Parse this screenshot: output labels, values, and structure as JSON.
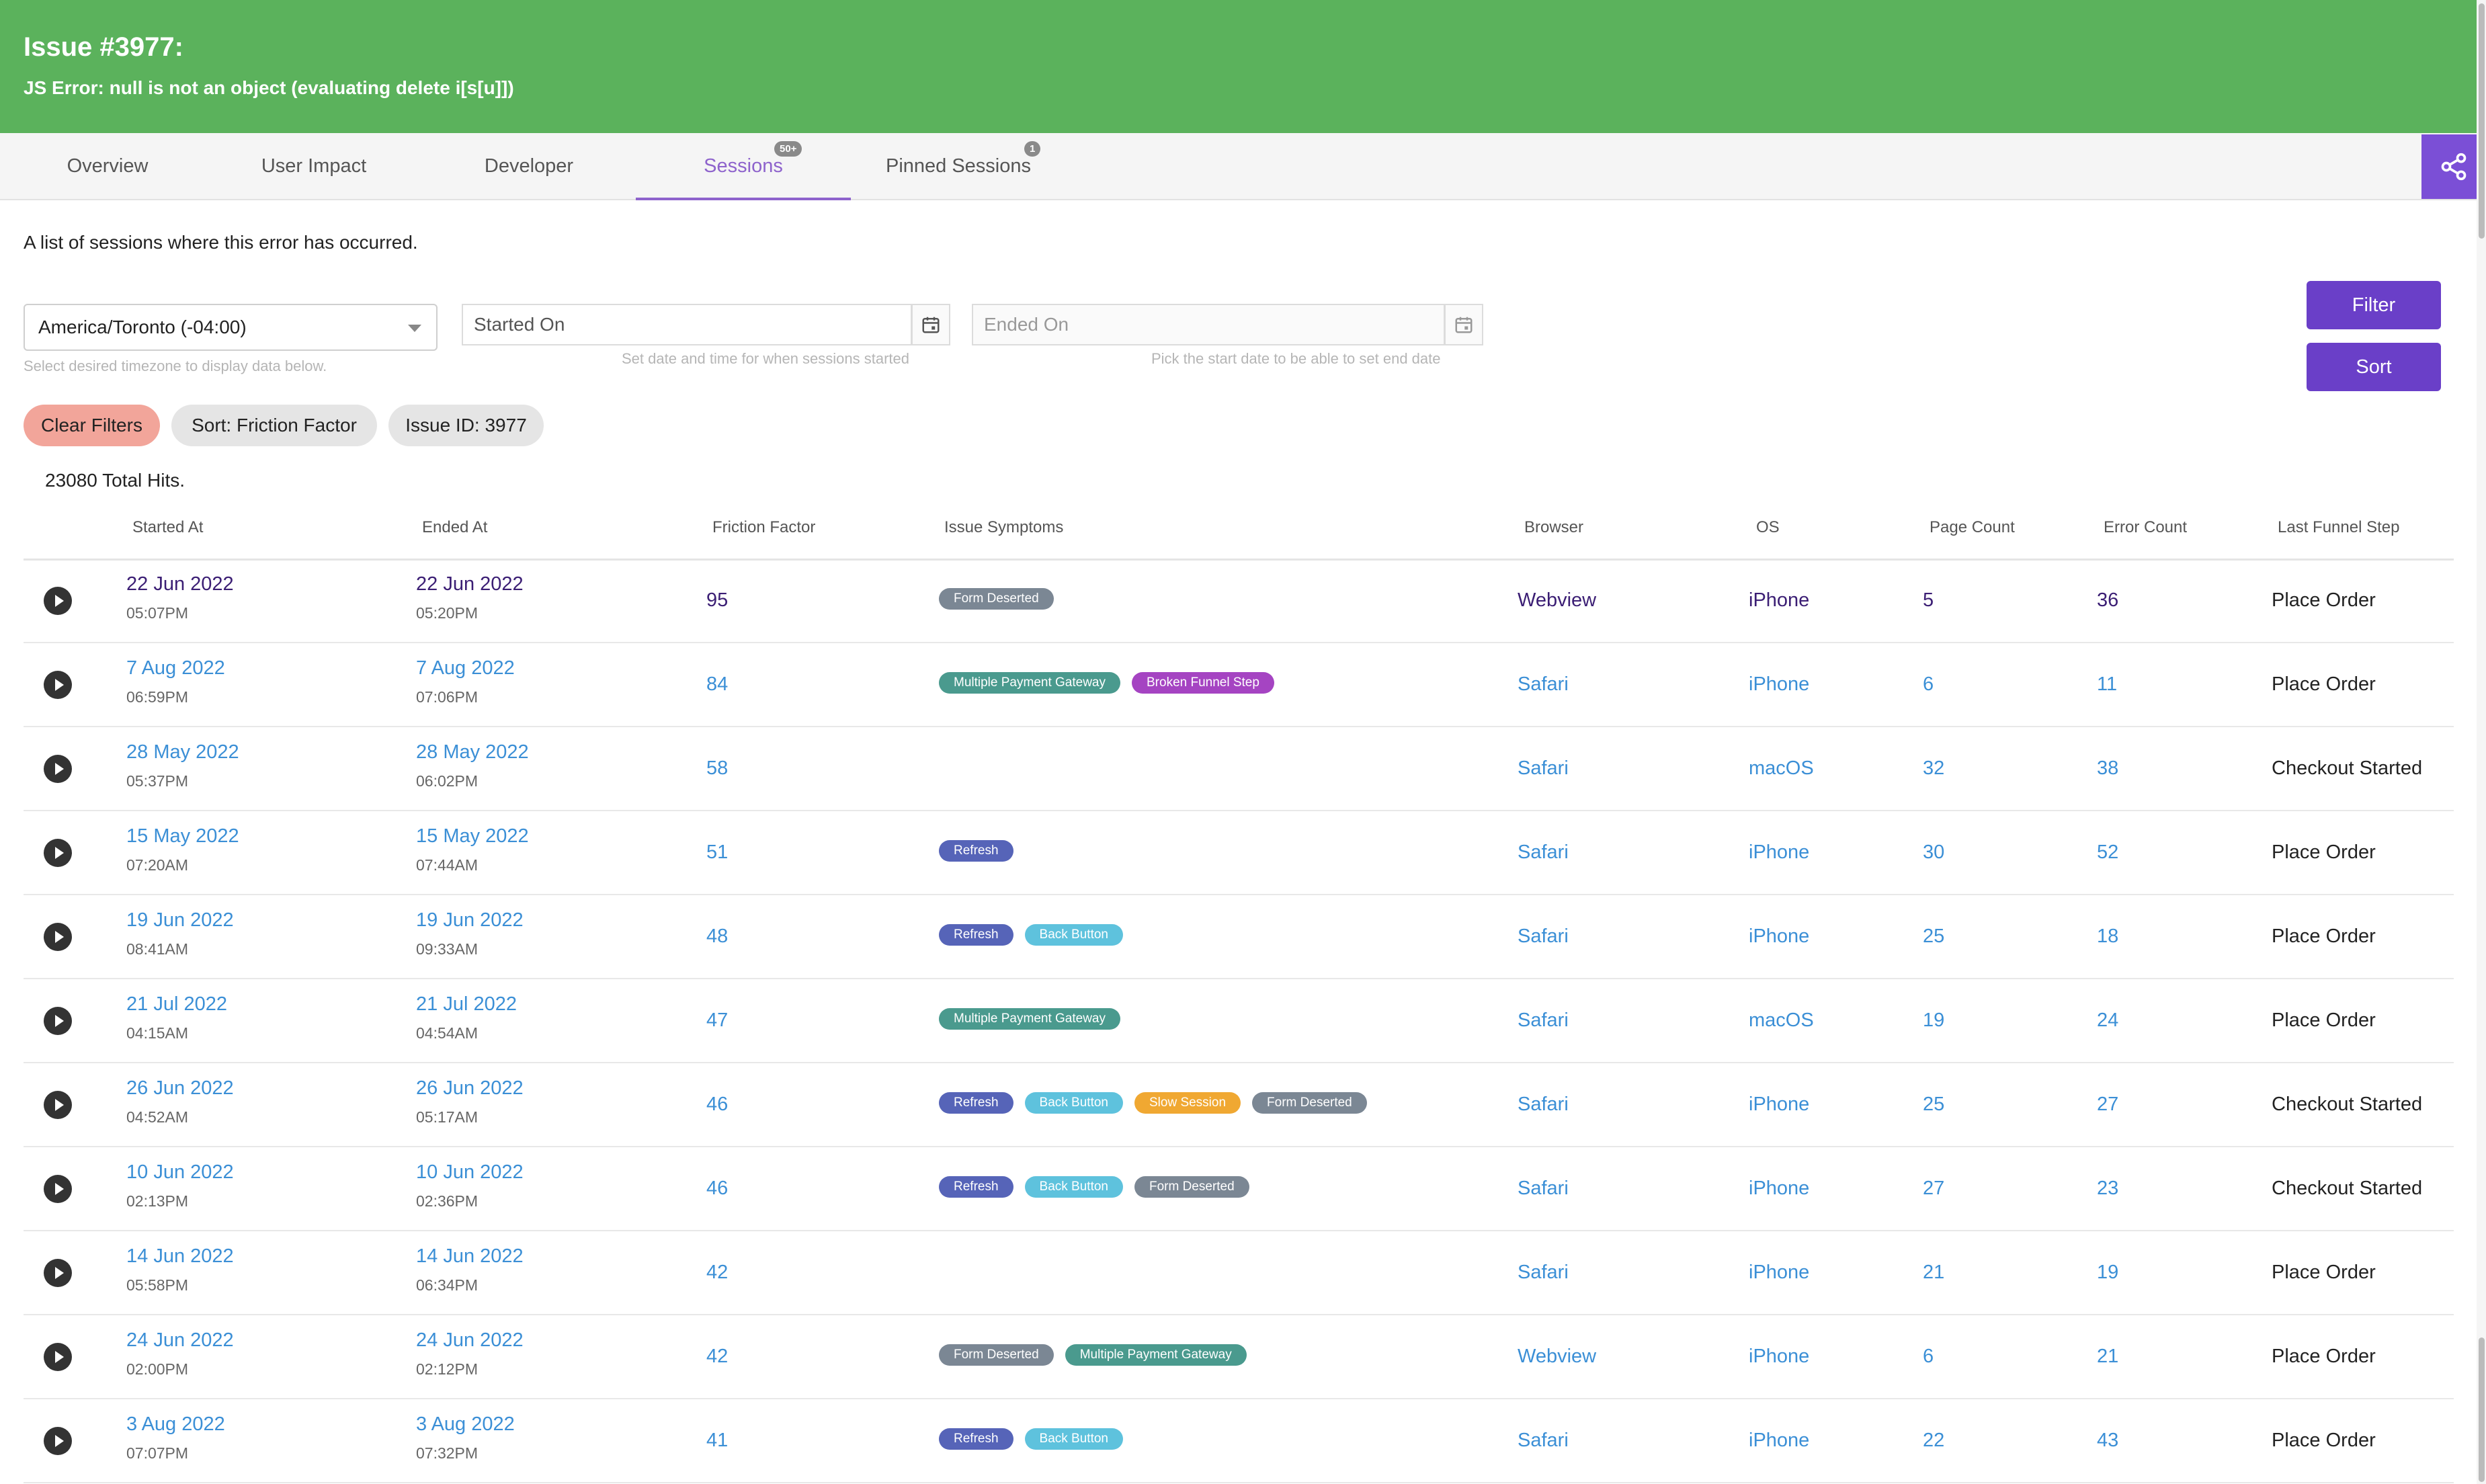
{
  "header": {
    "title": "Issue #3977:",
    "subtitle": "JS Error: null is not an object (evaluating delete i[s[u]])"
  },
  "tabs": [
    {
      "label": "Overview",
      "badge": ""
    },
    {
      "label": "User Impact",
      "badge": ""
    },
    {
      "label": "Developer",
      "badge": ""
    },
    {
      "label": "Sessions",
      "badge": "50+"
    },
    {
      "label": "Pinned Sessions",
      "badge": "1"
    }
  ],
  "active_tab": "Sessions",
  "description": "A list of sessions where this error has occurred.",
  "filters": {
    "timezone_value": "America/Toronto (-04:00)",
    "timezone_help": "Select desired timezone to display data below.",
    "started_placeholder": "Started On",
    "started_help": "Set date and time for when sessions started",
    "ended_placeholder": "Ended On",
    "ended_help": "Pick the start date to be able to set end date",
    "filter_button": "Filter",
    "sort_button": "Sort"
  },
  "chips": [
    "Clear Filters",
    "Sort: Friction Factor",
    "Issue ID: 3977"
  ],
  "total_hits": "23080 Total Hits.",
  "table": {
    "columns": [
      "Started At",
      "Ended At",
      "Friction Factor",
      "Issue Symptoms",
      "Browser",
      "OS",
      "Page Count",
      "Error Count",
      "Last Funnel Step"
    ],
    "rows": [
      {
        "start_date": "22 Jun 2022",
        "start_time": "05:07PM",
        "end_date": "22 Jun 2022",
        "end_time": "05:20PM",
        "friction": "95",
        "symptoms": [
          "Form Deserted"
        ],
        "browser": "Webview",
        "os": "iPhone",
        "pages": "5",
        "errors": "36",
        "funnel": "Place Order"
      },
      {
        "start_date": "7 Aug 2022",
        "start_time": "06:59PM",
        "end_date": "7 Aug 2022",
        "end_time": "07:06PM",
        "friction": "84",
        "symptoms": [
          "Multiple Payment Gateway",
          "Broken Funnel Step"
        ],
        "browser": "Safari",
        "os": "iPhone",
        "pages": "6",
        "errors": "11",
        "funnel": "Place Order"
      },
      {
        "start_date": "28 May 2022",
        "start_time": "05:37PM",
        "end_date": "28 May 2022",
        "end_time": "06:02PM",
        "friction": "58",
        "symptoms": [],
        "browser": "Safari",
        "os": "macOS",
        "pages": "32",
        "errors": "38",
        "funnel": "Checkout Started"
      },
      {
        "start_date": "15 May 2022",
        "start_time": "07:20AM",
        "end_date": "15 May 2022",
        "end_time": "07:44AM",
        "friction": "51",
        "symptoms": [
          "Refresh"
        ],
        "browser": "Safari",
        "os": "iPhone",
        "pages": "30",
        "errors": "52",
        "funnel": "Place Order"
      },
      {
        "start_date": "19 Jun 2022",
        "start_time": "08:41AM",
        "end_date": "19 Jun 2022",
        "end_time": "09:33AM",
        "friction": "48",
        "symptoms": [
          "Refresh",
          "Back Button"
        ],
        "browser": "Safari",
        "os": "iPhone",
        "pages": "25",
        "errors": "18",
        "funnel": "Place Order"
      },
      {
        "start_date": "21 Jul 2022",
        "start_time": "04:15AM",
        "end_date": "21 Jul 2022",
        "end_time": "04:54AM",
        "friction": "47",
        "symptoms": [
          "Multiple Payment Gateway"
        ],
        "browser": "Safari",
        "os": "macOS",
        "pages": "19",
        "errors": "24",
        "funnel": "Place Order"
      },
      {
        "start_date": "26 Jun 2022",
        "start_time": "04:52AM",
        "end_date": "26 Jun 2022",
        "end_time": "05:17AM",
        "friction": "46",
        "symptoms": [
          "Refresh",
          "Back Button",
          "Slow Session",
          "Form Deserted"
        ],
        "browser": "Safari",
        "os": "iPhone",
        "pages": "25",
        "errors": "27",
        "funnel": "Checkout Started"
      },
      {
        "start_date": "10 Jun 2022",
        "start_time": "02:13PM",
        "end_date": "10 Jun 2022",
        "end_time": "02:36PM",
        "friction": "46",
        "symptoms": [
          "Refresh",
          "Back Button",
          "Form Deserted"
        ],
        "browser": "Safari",
        "os": "iPhone",
        "pages": "27",
        "errors": "23",
        "funnel": "Checkout Started"
      },
      {
        "start_date": "14 Jun 2022",
        "start_time": "05:58PM",
        "end_date": "14 Jun 2022",
        "end_time": "06:34PM",
        "friction": "42",
        "symptoms": [],
        "browser": "Safari",
        "os": "iPhone",
        "pages": "21",
        "errors": "19",
        "funnel": "Place Order"
      },
      {
        "start_date": "24 Jun 2022",
        "start_time": "02:00PM",
        "end_date": "24 Jun 2022",
        "end_time": "02:12PM",
        "friction": "42",
        "symptoms": [
          "Form Deserted",
          "Multiple Payment Gateway"
        ],
        "browser": "Webview",
        "os": "iPhone",
        "pages": "6",
        "errors": "21",
        "funnel": "Place Order"
      },
      {
        "start_date": "3 Aug 2022",
        "start_time": "07:07PM",
        "end_date": "3 Aug 2022",
        "end_time": "07:32PM",
        "friction": "41",
        "symptoms": [
          "Refresh",
          "Back Button"
        ],
        "browser": "Safari",
        "os": "iPhone",
        "pages": "22",
        "errors": "43",
        "funnel": "Place Order"
      }
    ]
  },
  "tag_colors": {
    "Form Deserted": "#7b8794",
    "Multiple Payment Gateway": "#4a9a8e",
    "Broken Funnel Step": "#a544c2",
    "Refresh": "#5664b8",
    "Back Button": "#5ec2dd",
    "Slow Session": "#f0a832"
  },
  "colors": {
    "header_bg": "#5bb25c",
    "accent": "#8e63cc",
    "primary_button": "#6a3fc8",
    "link": "#3b8fd6"
  },
  "icons": {
    "share": "share-icon",
    "calendar": "calendar-icon",
    "play": "play-icon",
    "caret": "chevron-down-icon"
  }
}
